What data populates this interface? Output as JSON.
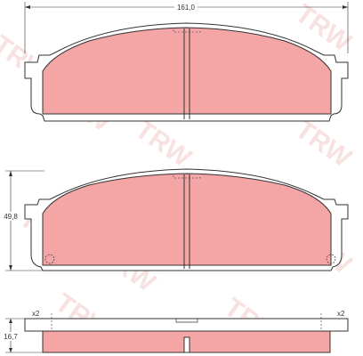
{
  "dimensions": {
    "width_label": "161,0",
    "height_label": "49,8",
    "thickness_label": "16,7",
    "quantity_left": "x2",
    "quantity_right": "x2"
  },
  "watermark": {
    "text": "TRW"
  },
  "colors": {
    "pad_fill": "#f4a6a6",
    "outline": "#333333",
    "watermark": "#f3c9c9"
  }
}
